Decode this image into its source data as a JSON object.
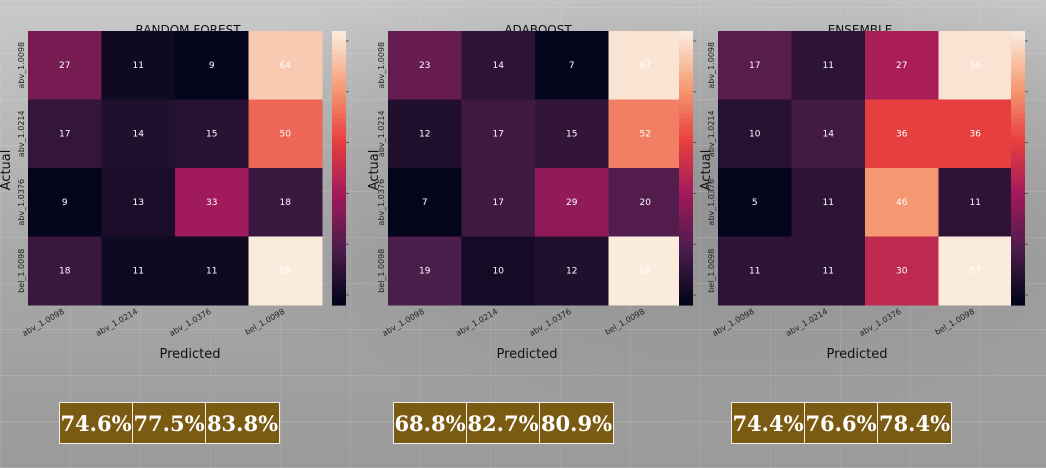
{
  "chart_data": [
    {
      "type": "heatmap",
      "title": "RANDOM FOREST",
      "xlabel": "Predicted",
      "ylabel": "Actual",
      "x_ticks": [
        "abv_1.0098",
        "abv_1.0214",
        "abv_1.0376",
        "bel_1.0098"
      ],
      "y_ticks": [
        "abv_1.0098",
        "abv_1.0214",
        "abv_1.0376",
        "bel_1.0098"
      ],
      "matrix": [
        [
          27,
          11,
          9,
          64
        ],
        [
          17,
          14,
          15,
          50
        ],
        [
          9,
          13,
          33,
          18
        ],
        [
          18,
          11,
          11,
          69
        ]
      ],
      "colorbar": true,
      "metrics": [
        "74.6%",
        "77.5%",
        "83.8%"
      ]
    },
    {
      "type": "heatmap",
      "title": "ADABOOST",
      "xlabel": "Predicted",
      "ylabel": "Actual",
      "x_ticks": [
        "abv_1.0098",
        "abv_1.0214",
        "abv_1.0376",
        "bel_1.0098"
      ],
      "y_ticks": [
        "abv_1.0098",
        "abv_1.0214",
        "abv_1.0376",
        "bel_1.0098"
      ],
      "matrix": [
        [
          23,
          14,
          7,
          67
        ],
        [
          12,
          17,
          15,
          52
        ],
        [
          7,
          17,
          29,
          20
        ],
        [
          19,
          10,
          12,
          68
        ]
      ],
      "colorbar": true,
      "metrics": [
        "68.8%",
        "82.7%",
        "80.9%"
      ]
    },
    {
      "type": "heatmap",
      "title": "ENSEMBLE",
      "xlabel": "Predicted",
      "ylabel": "Actual",
      "x_ticks": [
        "abv_1.0098",
        "abv_1.0214",
        "abv_1.0376",
        "bel_1.0098"
      ],
      "y_ticks": [
        "abv_1.0098",
        "abv_1.0214",
        "abv_1.0376",
        "bel_1.0098"
      ],
      "matrix": [
        [
          17,
          11,
          27,
          56
        ],
        [
          10,
          14,
          36,
          36
        ],
        [
          5,
          11,
          46,
          11
        ],
        [
          11,
          11,
          30,
          57
        ]
      ],
      "colorbar": true,
      "metrics": [
        "74.4%",
        "76.6%",
        "78.4%"
      ]
    }
  ],
  "colors": {
    "colormap": [
      "#03051a",
      "#4c1d4b",
      "#a11a5b",
      "#e83f3f",
      "#f69c73",
      "#faebdd"
    ],
    "metric_box": "#7b5a12"
  }
}
